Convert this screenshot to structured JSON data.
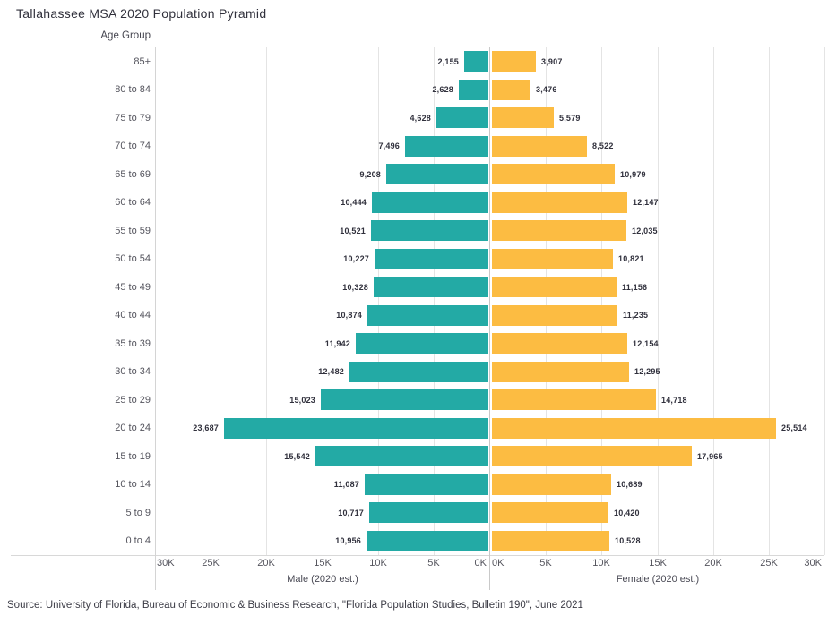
{
  "title": "Tallahassee MSA 2020 Population Pyramid",
  "source": "Source: University of Florida, Bureau of Economic & Business Research, \"Florida Population Studies, Bulletin 190\", June 2021",
  "chart_data": {
    "type": "bar",
    "variant": "population-pyramid",
    "title": "Tallahassee MSA 2020 Population Pyramid",
    "age_axis_label": "Age Group",
    "categories": [
      "85+",
      "80 to 84",
      "75 to 79",
      "70 to 74",
      "65 to 69",
      "60 to 64",
      "55 to 59",
      "50 to 54",
      "45 to 49",
      "40 to 44",
      "35 to 39",
      "30 to 34",
      "25 to 29",
      "20 to 24",
      "15 to 19",
      "10 to 14",
      "5 to 9",
      "0 to 4"
    ],
    "series": [
      {
        "name": "Male (2020 est.)",
        "color": "#23aaa5",
        "values": [
          2155,
          2628,
          4628,
          7496,
          9208,
          10444,
          10521,
          10227,
          10328,
          10874,
          11942,
          12482,
          15023,
          23687,
          15542,
          11087,
          10717,
          10956
        ]
      },
      {
        "name": "Female (2020 est.)",
        "color": "#fcbc42",
        "values": [
          3907,
          3476,
          5579,
          8522,
          10979,
          12147,
          12035,
          10821,
          11156,
          11235,
          12154,
          12295,
          14718,
          25514,
          17965,
          10689,
          10420,
          10528
        ]
      }
    ],
    "x_ticks_male": [
      "30K",
      "25K",
      "20K",
      "15K",
      "10K",
      "5K",
      "0K"
    ],
    "x_ticks_female": [
      "0K",
      "5K",
      "10K",
      "15K",
      "20K",
      "25K",
      "30K"
    ],
    "xlim": [
      0,
      30000
    ],
    "grid": true,
    "gridline_color": "#e4e4e4",
    "legend": "none"
  }
}
